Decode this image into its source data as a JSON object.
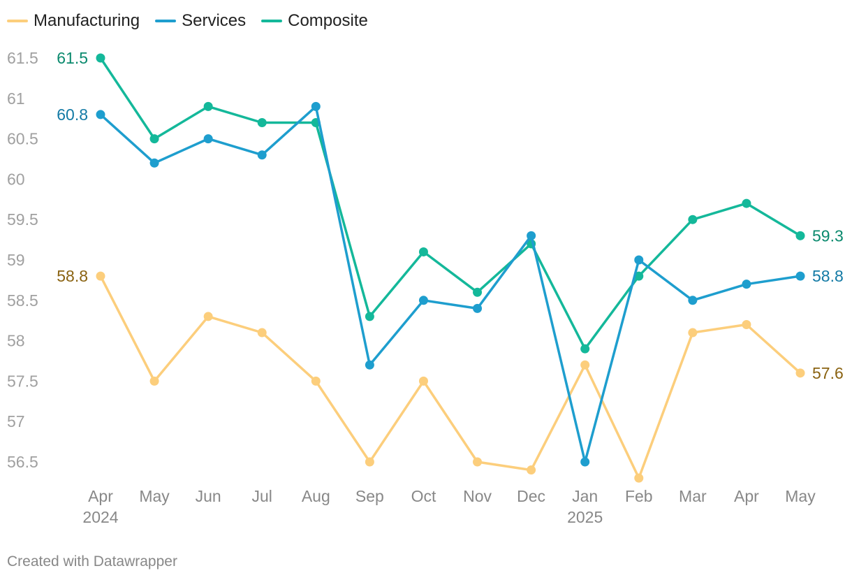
{
  "legend": [
    {
      "name": "Manufacturing",
      "color": "#fcce7c"
    },
    {
      "name": "Services",
      "color": "#1e9ece"
    },
    {
      "name": "Composite",
      "color": "#14b89a"
    }
  ],
  "credit": "Created with Datawrapper",
  "chart_data": {
    "type": "line",
    "title": "",
    "xlabel": "",
    "ylabel": "",
    "categories": [
      [
        "Apr",
        "2024"
      ],
      [
        "May",
        ""
      ],
      [
        "Jun",
        ""
      ],
      [
        "Jul",
        ""
      ],
      [
        "Aug",
        ""
      ],
      [
        "Sep",
        ""
      ],
      [
        "Oct",
        ""
      ],
      [
        "Nov",
        ""
      ],
      [
        "Dec",
        ""
      ],
      [
        "Jan",
        "2025"
      ],
      [
        "Feb",
        ""
      ],
      [
        "Mar",
        ""
      ],
      [
        "Apr",
        ""
      ],
      [
        "May",
        ""
      ]
    ],
    "ylim": [
      56.2,
      61.6
    ],
    "yticks": [
      "61.5",
      "61",
      "60.5",
      "60",
      "59.5",
      "59",
      "58.5",
      "58",
      "57.5",
      "57",
      "56.5"
    ],
    "grid": false,
    "legend_position": "top-left",
    "series": [
      {
        "name": "Manufacturing",
        "color": "#fcce7c",
        "label_color": "#8a6312",
        "values": [
          58.8,
          57.5,
          58.3,
          58.1,
          57.5,
          56.5,
          57.5,
          56.5,
          56.4,
          57.7,
          56.3,
          58.1,
          58.2,
          57.6
        ],
        "start_label": "58.8",
        "end_label": "57.6"
      },
      {
        "name": "Composite",
        "color": "#14b89a",
        "label_color": "#0b8a6e",
        "values": [
          61.5,
          60.5,
          60.9,
          60.7,
          60.7,
          58.3,
          59.1,
          58.6,
          59.2,
          57.9,
          58.8,
          59.5,
          59.7,
          59.3
        ],
        "start_label": "61.5",
        "end_label": "59.3"
      },
      {
        "name": "Services",
        "color": "#1e9ece",
        "label_color": "#137aa5",
        "values": [
          60.8,
          60.2,
          60.5,
          60.3,
          60.9,
          57.7,
          58.5,
          58.4,
          59.3,
          56.5,
          59.0,
          58.5,
          58.7,
          58.8
        ],
        "start_label": "60.8",
        "end_label": "58.8"
      }
    ]
  }
}
